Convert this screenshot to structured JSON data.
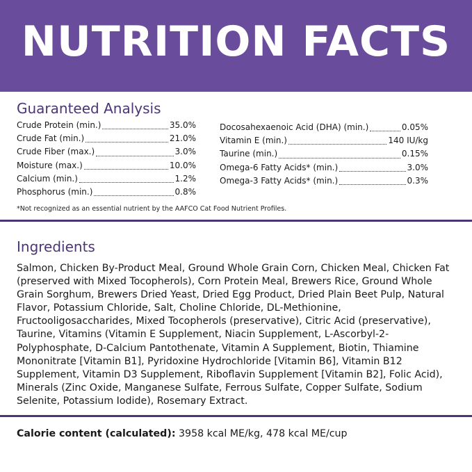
{
  "header": {
    "title": "NUTRITION FACTS"
  },
  "guaranteed_analysis": {
    "title": "Guaranteed Analysis",
    "left_column": [
      {
        "label": "Crude Protein (min.)",
        "value": "35.0%"
      },
      {
        "label": "Crude Fat (min.)",
        "value": "21.0%"
      },
      {
        "label": "Crude Fiber (max.)",
        "value": "3.0%"
      },
      {
        "label": "Moisture (max.)",
        "value": "10.0%"
      },
      {
        "label": "Calcium (min.)",
        "value": "1.2%"
      },
      {
        "label": "Phosphorus (min.)",
        "value": "0.8%"
      }
    ],
    "right_column": [
      {
        "label": "Docosahexaenoic Acid (DHA) (min.)",
        "value": "0.05%"
      },
      {
        "label": "Vitamin E (min.)",
        "value": "140 IU/kg"
      },
      {
        "label": "Taurine (min.)",
        "value": "0.15%"
      },
      {
        "label": "Omega-6 Fatty Acids* (min.)",
        "value": "3.0%"
      },
      {
        "label": "Omega-3 Fatty Acids* (min.)",
        "value": "0.3%"
      }
    ],
    "footnote": "*Not recognized as an essential nutrient by the AAFCO Cat Food Nutrient Profiles."
  },
  "ingredients": {
    "title": "Ingredients",
    "text": "Salmon, Chicken By-Product Meal, Ground Whole Grain Corn, Chicken Meal, Chicken Fat (preserved with Mixed Tocopherols), Corn Protein Meal, Brewers Rice, Ground Whole Grain Sorghum, Brewers Dried Yeast, Dried Egg Product, Dried Plain Beet Pulp, Natural Flavor, Potassium Chloride, Salt, Choline Chloride, DL-Methionine, Fructooligosaccharides, Mixed Tocopherols (preservative), Citric Acid (preservative), Taurine, Vitamins (Vitamin E Supplement, Niacin Supplement, L-Ascorbyl-2-Polyphosphate, D-Calcium Pantothenate, Vitamin A Supplement, Biotin, Thiamine Mononitrate [Vitamin B1], Pyridoxine Hydrochloride [Vitamin B6], Vitamin B12 Supplement, Vitamin D3 Supplement, Riboflavin Supplement [Vitamin B2], Folic Acid), Minerals (Zinc Oxide, Manganese Sulfate, Ferrous Sulfate, Copper Sulfate, Sodium Selenite, Potassium Iodide), Rosemary Extract."
  },
  "calorie": {
    "label": "Calorie content (calculated):",
    "value": "3958 kcal ME/kg, 478 kcal ME/cup"
  }
}
